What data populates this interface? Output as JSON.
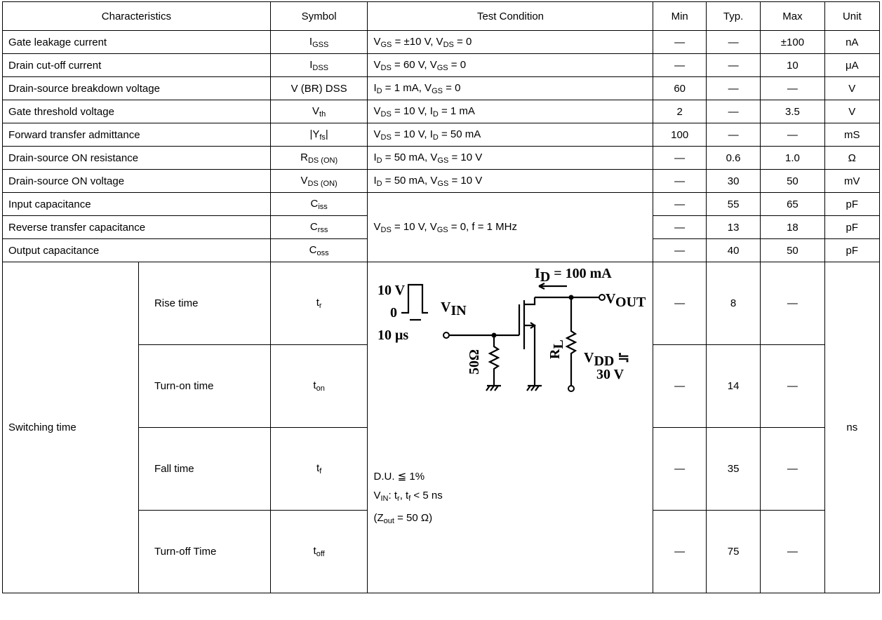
{
  "table": {
    "headers": [
      "Characteristics",
      "Symbol",
      "Test Condition",
      "Min",
      "Typ.",
      "Max",
      "Unit"
    ],
    "rows": [
      {
        "characteristic": "Gate leakage current",
        "symbol": [
          "I",
          "GSS"
        ],
        "condition": [
          "V",
          "GS",
          " = ±10 V, V",
          "DS",
          " = 0"
        ],
        "min": "—",
        "typ": "—",
        "max": "±100",
        "unit": "nA"
      },
      {
        "characteristic": "Drain cut-off current",
        "symbol": [
          "I",
          "DSS"
        ],
        "condition": [
          "V",
          "DS",
          " = 60 V, V",
          "GS",
          " = 0"
        ],
        "min": "—",
        "typ": "—",
        "max": "10",
        "unit": "μA"
      },
      {
        "characteristic": "Drain-source breakdown voltage",
        "symbol": [
          "V (BR) DSS"
        ],
        "condition": [
          "I",
          "D",
          " = 1 mA, V",
          "GS",
          " = 0"
        ],
        "min": "60",
        "typ": "—",
        "max": "—",
        "unit": "V"
      },
      {
        "characteristic": "Gate threshold voltage",
        "symbol": [
          "V",
          "th"
        ],
        "condition": [
          "V",
          "DS",
          " = 10 V, I",
          "D",
          " = 1 mA"
        ],
        "min": "2",
        "typ": "—",
        "max": "3.5",
        "unit": "V"
      },
      {
        "characteristic": "Forward transfer admittance",
        "symbol": [
          "|Y",
          "fs",
          "|"
        ],
        "condition": [
          "V",
          "DS",
          " = 10 V, I",
          "D",
          " = 50 mA"
        ],
        "min": "100",
        "typ": "—",
        "max": "—",
        "unit": "mS"
      },
      {
        "characteristic": "Drain-source ON resistance",
        "symbol": [
          "R",
          "DS (ON)"
        ],
        "condition": [
          "I",
          "D",
          " = 50 mA, V",
          "GS",
          " = 10 V"
        ],
        "min": "—",
        "typ": "0.6",
        "max": "1.0",
        "unit": "Ω"
      },
      {
        "characteristic": "Drain-source ON voltage",
        "symbol": [
          "V",
          "DS (ON)"
        ],
        "condition": [
          "I",
          "D",
          " = 50 mA, V",
          "GS",
          " = 10 V"
        ],
        "min": "—",
        "typ": "30",
        "max": "50",
        "unit": "mV"
      },
      {
        "characteristic": "Input capacitance",
        "symbol": [
          "C",
          "iss"
        ],
        "condition": [
          "V",
          "DS",
          " = 10 V, V",
          "GS",
          " = 0, f = 1 MHz"
        ],
        "min": "—",
        "typ": "55",
        "max": "65",
        "unit": "pF"
      },
      {
        "characteristic": "Reverse transfer capacitance",
        "symbol": [
          "C",
          "rss"
        ],
        "min": "—",
        "typ": "13",
        "max": "18",
        "unit": "pF"
      },
      {
        "characteristic": "Output capacitance",
        "symbol": [
          "C",
          "oss"
        ],
        "min": "—",
        "typ": "40",
        "max": "50",
        "unit": "pF"
      }
    ],
    "switching": {
      "label": "Switching time",
      "unit": "ns",
      "rows": [
        {
          "name": "Rise time",
          "symbol": [
            "t",
            "r"
          ],
          "min": "—",
          "typ": "8",
          "max": "—"
        },
        {
          "name": "Turn-on time",
          "symbol": [
            "t",
            "on"
          ],
          "min": "—",
          "typ": "14",
          "max": "—"
        },
        {
          "name": "Fall time",
          "symbol": [
            "t",
            "f"
          ],
          "min": "—",
          "typ": "35",
          "max": "—"
        },
        {
          "name": "Turn-off Time",
          "symbol": [
            "t",
            "off"
          ],
          "min": "—",
          "typ": "75",
          "max": "—"
        }
      ],
      "circuit": {
        "pulse_high": "10 V",
        "pulse_low": "0",
        "pulse_width": "10 μs",
        "input": [
          "V",
          "IN"
        ],
        "current": [
          "I",
          "D",
          " = 100 mA"
        ],
        "output": [
          "V",
          "OUT"
        ],
        "load": [
          "R",
          "L"
        ],
        "input_resistor": "50Ω",
        "supply": [
          "V",
          "DD",
          " ≒"
        ],
        "supply_value": "30 V"
      },
      "notes": [
        [
          "D.U. ≦ 1%"
        ],
        [
          "V",
          "IN",
          ": t",
          "r",
          ", t",
          "f",
          " < 5 ns"
        ],
        [
          "(Z",
          "out",
          " = 50 Ω)"
        ]
      ]
    }
  }
}
